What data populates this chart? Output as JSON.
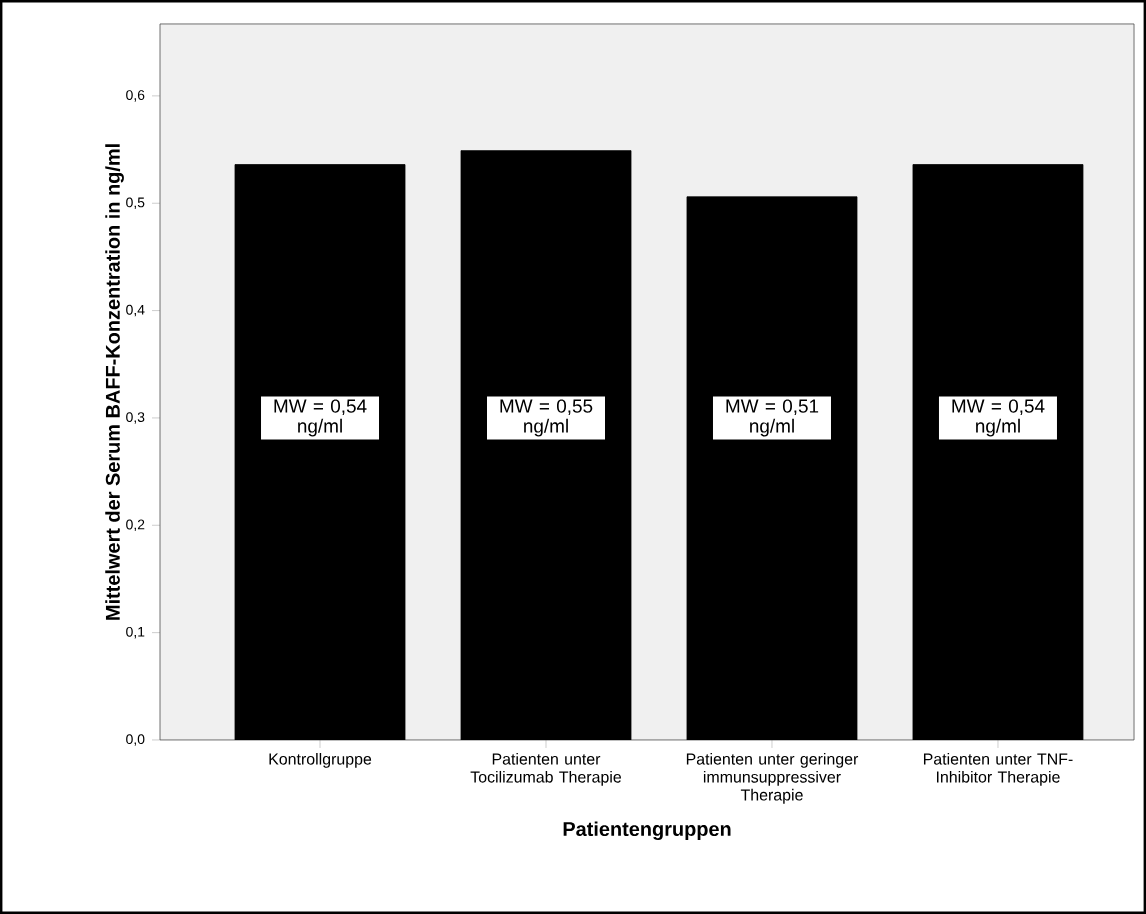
{
  "chart_data": {
    "type": "bar",
    "xlabel": "Patientengruppen",
    "ylabel": "Mittelwert der Serum BAFF-Konzentration in ng/ml",
    "categories": [
      "Kontrollgruppe",
      "Patienten unter Tocilizumab Therapie",
      "Patienten unter geringer immunsuppressiver Therapie",
      "Patienten unter TNF-Inhibitor Therapie"
    ],
    "values": [
      0.536,
      0.549,
      0.506,
      0.536
    ],
    "color": "#000000",
    "value_labels": [
      "MW = 0,54 ng/ml",
      "MW = 0,55 ng/ml",
      "MW = 0,51 ng/ml",
      "MW = 0,54 ng/ml"
    ],
    "ylim": [
      0,
      0.667
    ],
    "yticks": [
      {
        "value": 0,
        "label": "0,0"
      },
      {
        "value": 0.1,
        "label": "0,1"
      },
      {
        "value": 0.2,
        "label": "0,2"
      },
      {
        "value": 0.3,
        "label": "0,3"
      },
      {
        "value": 0.4,
        "label": "0,4"
      },
      {
        "value": 0.5,
        "label": "0,5"
      },
      {
        "value": 0.6,
        "label": "0,6"
      }
    ],
    "grid": false
  }
}
